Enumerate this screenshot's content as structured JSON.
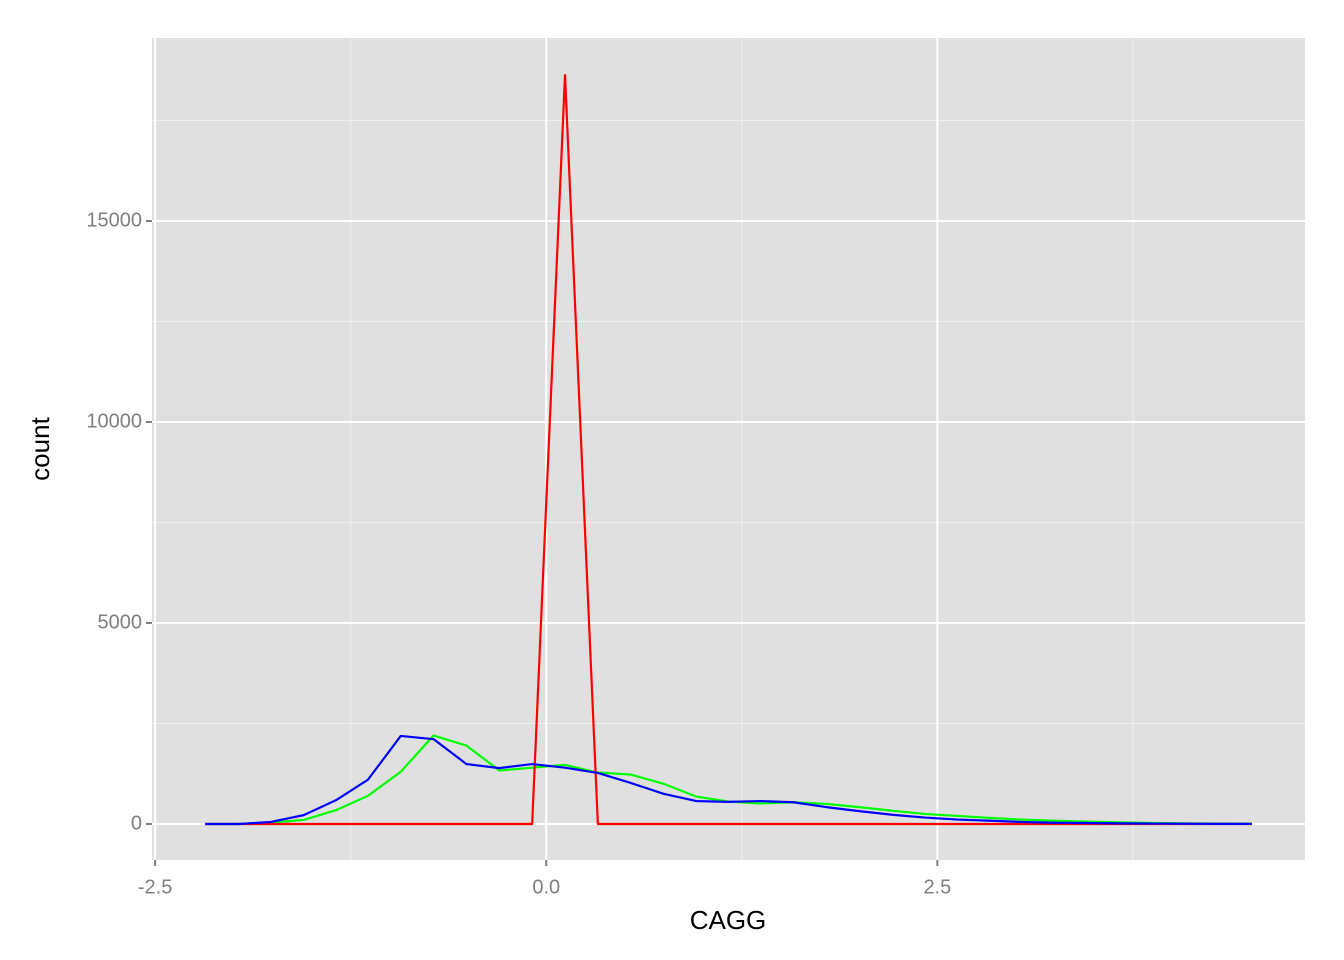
{
  "chart_data": {
    "type": "line",
    "x_label": "CAGG",
    "y_label": "count",
    "x": [
      -2.18,
      -1.97,
      -1.76,
      -1.55,
      -1.34,
      -1.14,
      -0.93,
      -0.72,
      -0.51,
      -0.3,
      -0.09,
      0.12,
      0.33,
      0.54,
      0.75,
      0.96,
      1.16,
      1.37,
      1.58,
      1.79,
      2.0,
      2.21,
      2.42,
      2.63,
      2.84,
      3.04,
      3.25,
      3.46,
      3.67,
      3.88,
      4.09,
      4.3,
      4.51
    ],
    "series": [
      {
        "color": "#00ff00",
        "values": [
          0,
          0,
          30,
          100,
          350,
          700,
          1300,
          2200,
          1950,
          1330,
          1400,
          1470,
          1280,
          1230,
          1000,
          680,
          560,
          510,
          540,
          500,
          420,
          330,
          250,
          200,
          150,
          110,
          80,
          60,
          40,
          25,
          15,
          8,
          5
        ]
      },
      {
        "color": "#ff0000",
        "values": [
          0,
          0,
          0,
          0,
          0,
          0,
          0,
          0,
          0,
          0,
          0,
          18630,
          0,
          0,
          0,
          0,
          0,
          0,
          0,
          0,
          0,
          0,
          0,
          0,
          0,
          0,
          0,
          0,
          0,
          0,
          0,
          0,
          0
        ]
      },
      {
        "color": "#0000ff",
        "values": [
          0,
          0,
          50,
          220,
          600,
          1100,
          2190,
          2110,
          1490,
          1390,
          1490,
          1400,
          1270,
          1020,
          750,
          570,
          550,
          570,
          540,
          420,
          320,
          230,
          160,
          110,
          80,
          50,
          30,
          25,
          15,
          10,
          5,
          3,
          2
        ]
      }
    ],
    "xlim": [
      -2.52,
      4.85
    ],
    "xticks": [
      {
        "value": -2.5,
        "label": "-2.5"
      },
      {
        "value": 0,
        "label": "0.0"
      },
      {
        "value": 2.5,
        "label": "2.5"
      }
    ],
    "ylim": [
      -896,
      19552
    ],
    "yticks": [
      0,
      5000,
      10000,
      15000
    ],
    "grid": true
  }
}
